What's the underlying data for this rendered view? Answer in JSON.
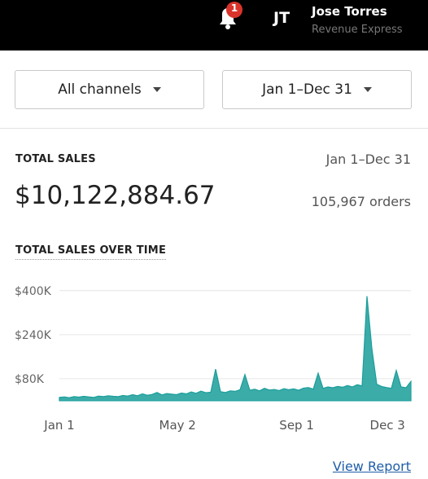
{
  "header": {
    "badge": "1",
    "initials": "JT",
    "user_name": "Jose Torres",
    "company": "Revenue Express"
  },
  "filters": {
    "channel": "All channels",
    "date_range": "Jan 1–Dec 31"
  },
  "summary": {
    "label": "TOTAL SALES",
    "date_range": "Jan 1–Dec 31",
    "amount": "$10,122,884.67",
    "orders": "105,967 orders"
  },
  "chart_data": {
    "type": "area",
    "title": "TOTAL SALES OVER TIME",
    "color": "#1a9e9a",
    "grid": true,
    "x": [
      0,
      5,
      10,
      15,
      20,
      25,
      30,
      35,
      40,
      45,
      50,
      55,
      60,
      65,
      70,
      75,
      80,
      85,
      90,
      95,
      100,
      105,
      110,
      115,
      120,
      125,
      130,
      135,
      140,
      145,
      150,
      155,
      160,
      165,
      170,
      175,
      180,
      185,
      190,
      195,
      200,
      205,
      210,
      215,
      220,
      225,
      230,
      235,
      240,
      245,
      250,
      255,
      260,
      265,
      270,
      275,
      280,
      285,
      290,
      295,
      300,
      305,
      310,
      315,
      320,
      325,
      330,
      335,
      340,
      345,
      350,
      355,
      360
    ],
    "values": [
      12000,
      14000,
      11000,
      15000,
      13000,
      16000,
      14000,
      12000,
      17000,
      15000,
      18000,
      16000,
      15000,
      19000,
      17000,
      22000,
      18000,
      25000,
      20000,
      23000,
      30000,
      21000,
      26000,
      24000,
      22000,
      28000,
      25000,
      32000,
      27000,
      35000,
      29000,
      31000,
      115000,
      33000,
      30000,
      36000,
      34000,
      40000,
      95000,
      38000,
      42000,
      36000,
      45000,
      39000,
      41000,
      37000,
      44000,
      40000,
      43000,
      38000,
      46000,
      48000,
      42000,
      100000,
      45000,
      50000,
      47000,
      52000,
      49000,
      55000,
      50000,
      58000,
      54000,
      380000,
      190000,
      60000,
      52000,
      48000,
      45000,
      110000,
      50000,
      47000,
      70000
    ],
    "xlim": [
      0,
      360
    ],
    "xticks": [
      {
        "value": 0,
        "label": "Jan 1"
      },
      {
        "value": 121,
        "label": "May 2"
      },
      {
        "value": 243,
        "label": "Sep 1"
      },
      {
        "value": 336,
        "label": "Dec 3"
      }
    ],
    "ylim": [
      -15000,
      420000
    ],
    "yticks": [
      {
        "value": 80000,
        "label": "$80K"
      },
      {
        "value": 240000,
        "label": "$240K"
      },
      {
        "value": 400000,
        "label": "$400K"
      }
    ]
  },
  "link": "View Report"
}
